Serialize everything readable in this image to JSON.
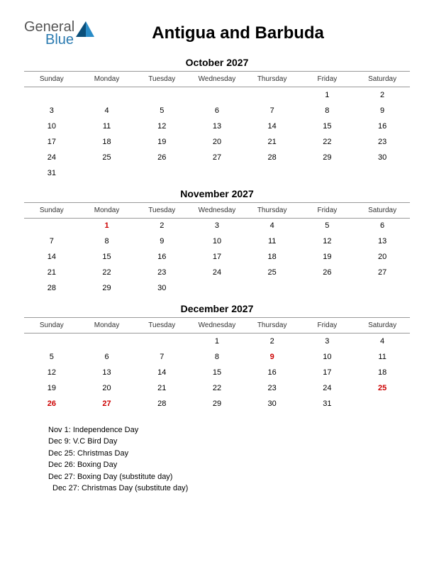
{
  "logo": {
    "general": "General",
    "blue": "Blue"
  },
  "title": "Antigua and Barbuda",
  "weekdays": [
    "Sunday",
    "Monday",
    "Tuesday",
    "Wednesday",
    "Thursday",
    "Friday",
    "Saturday"
  ],
  "colors": {
    "holiday": "#cc0000",
    "text": "#000000",
    "border": "#999999",
    "logo_gray": "#555555",
    "logo_blue": "#2a7ab0",
    "logo_tri_dark": "#0b4f7a",
    "logo_tri_light": "#2a8cc7"
  },
  "months": [
    {
      "title": "October 2027",
      "weeks": [
        [
          "",
          "",
          "",
          "",
          "",
          "1",
          "2"
        ],
        [
          "3",
          "4",
          "5",
          "6",
          "7",
          "8",
          "9"
        ],
        [
          "10",
          "11",
          "12",
          "13",
          "14",
          "15",
          "16"
        ],
        [
          "17",
          "18",
          "19",
          "20",
          "21",
          "22",
          "23"
        ],
        [
          "24",
          "25",
          "26",
          "27",
          "28",
          "29",
          "30"
        ],
        [
          "31",
          "",
          "",
          "",
          "",
          "",
          ""
        ]
      ],
      "holidays": []
    },
    {
      "title": "November 2027",
      "weeks": [
        [
          "",
          "1",
          "2",
          "3",
          "4",
          "5",
          "6"
        ],
        [
          "7",
          "8",
          "9",
          "10",
          "11",
          "12",
          "13"
        ],
        [
          "14",
          "15",
          "16",
          "17",
          "18",
          "19",
          "20"
        ],
        [
          "21",
          "22",
          "23",
          "24",
          "25",
          "26",
          "27"
        ],
        [
          "28",
          "29",
          "30",
          "",
          "",
          "",
          ""
        ]
      ],
      "holidays": [
        "1"
      ]
    },
    {
      "title": "December 2027",
      "weeks": [
        [
          "",
          "",
          "",
          "1",
          "2",
          "3",
          "4"
        ],
        [
          "5",
          "6",
          "7",
          "8",
          "9",
          "10",
          "11"
        ],
        [
          "12",
          "13",
          "14",
          "15",
          "16",
          "17",
          "18"
        ],
        [
          "19",
          "20",
          "21",
          "22",
          "23",
          "24",
          "25"
        ],
        [
          "26",
          "27",
          "28",
          "29",
          "30",
          "31",
          ""
        ]
      ],
      "holidays": [
        "9",
        "25",
        "26",
        "27"
      ]
    }
  ],
  "holiday_list": [
    "Nov 1: Independence Day",
    "Dec 9: V.C Bird Day",
    "Dec 25: Christmas Day",
    "Dec 26: Boxing Day",
    "Dec 27: Boxing Day (substitute day)",
    "Dec 27: Christmas Day (substitute day)"
  ]
}
